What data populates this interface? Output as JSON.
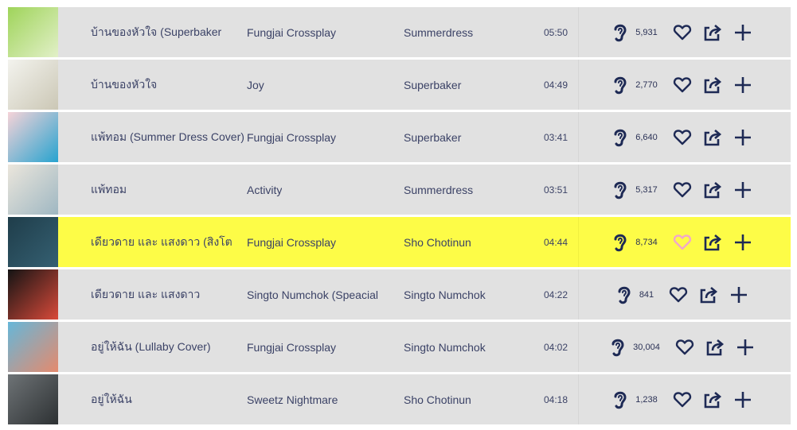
{
  "colors": {
    "row_bg": "#e1e1e1",
    "highlight_bg": "#fdfc47",
    "icon": "#1e2a55",
    "liked_heart": "#f2a9c8"
  },
  "icons": {
    "listens": "ear-icon",
    "like": "heart-icon",
    "share": "share-icon",
    "add": "plus-icon"
  },
  "tracks": [
    {
      "title": "บ้านของหัวใจ (Superbaker",
      "artist": "Fungjai Crossplay",
      "album": "Summerdress",
      "duration": "05:50",
      "listens": "5,931",
      "thumb": [
        "#9fd45a",
        "#e2f0c8"
      ],
      "active": false
    },
    {
      "title": "บ้านของหัวใจ",
      "artist": "Joy",
      "album": "Superbaker",
      "duration": "04:49",
      "listens": "2,770",
      "thumb": [
        "#f3f3ee",
        "#cbc7b5"
      ],
      "active": false
    },
    {
      "title": "แพ้ทอม (Summer Dress Cover)",
      "artist": "Fungjai Crossplay",
      "album": "Superbaker",
      "duration": "03:41",
      "listens": "6,640",
      "thumb": [
        "#f6d3d8",
        "#27a3cf"
      ],
      "active": false
    },
    {
      "title": "แพ้ทอม",
      "artist": "Activity",
      "album": "Summerdress",
      "duration": "03:51",
      "listens": "5,317",
      "thumb": [
        "#ebe6dc",
        "#9fb7c2"
      ],
      "active": false
    },
    {
      "title": "เดียวดาย และ แสงดาว (สิงโต",
      "artist": "Fungjai Crossplay",
      "album": "Sho Chotinun",
      "duration": "04:44",
      "listens": "8,734",
      "thumb": [
        "#1f3d4a",
        "#356072"
      ],
      "active": true
    },
    {
      "title": "เดียวดาย และ แสงดาว",
      "artist": "Singto Numchok (Speacial",
      "album": "Singto Numchok",
      "duration": "04:22",
      "listens": "841",
      "thumb": [
        "#141414",
        "#d94a3a"
      ],
      "active": false
    },
    {
      "title": "อยู่ให้ฉัน (Lullaby Cover)",
      "artist": "Fungjai Crossplay",
      "album": "Singto Numchok",
      "duration": "04:02",
      "listens": "30,004",
      "thumb": [
        "#66b7d9",
        "#e58a6d"
      ],
      "active": false
    },
    {
      "title": "อยู่ให้ฉัน",
      "artist": "Sweetz Nightmare",
      "album": "Sho Chotinun",
      "duration": "04:18",
      "listens": "1,238",
      "thumb": [
        "#6e7376",
        "#2d3133"
      ],
      "active": false
    }
  ]
}
